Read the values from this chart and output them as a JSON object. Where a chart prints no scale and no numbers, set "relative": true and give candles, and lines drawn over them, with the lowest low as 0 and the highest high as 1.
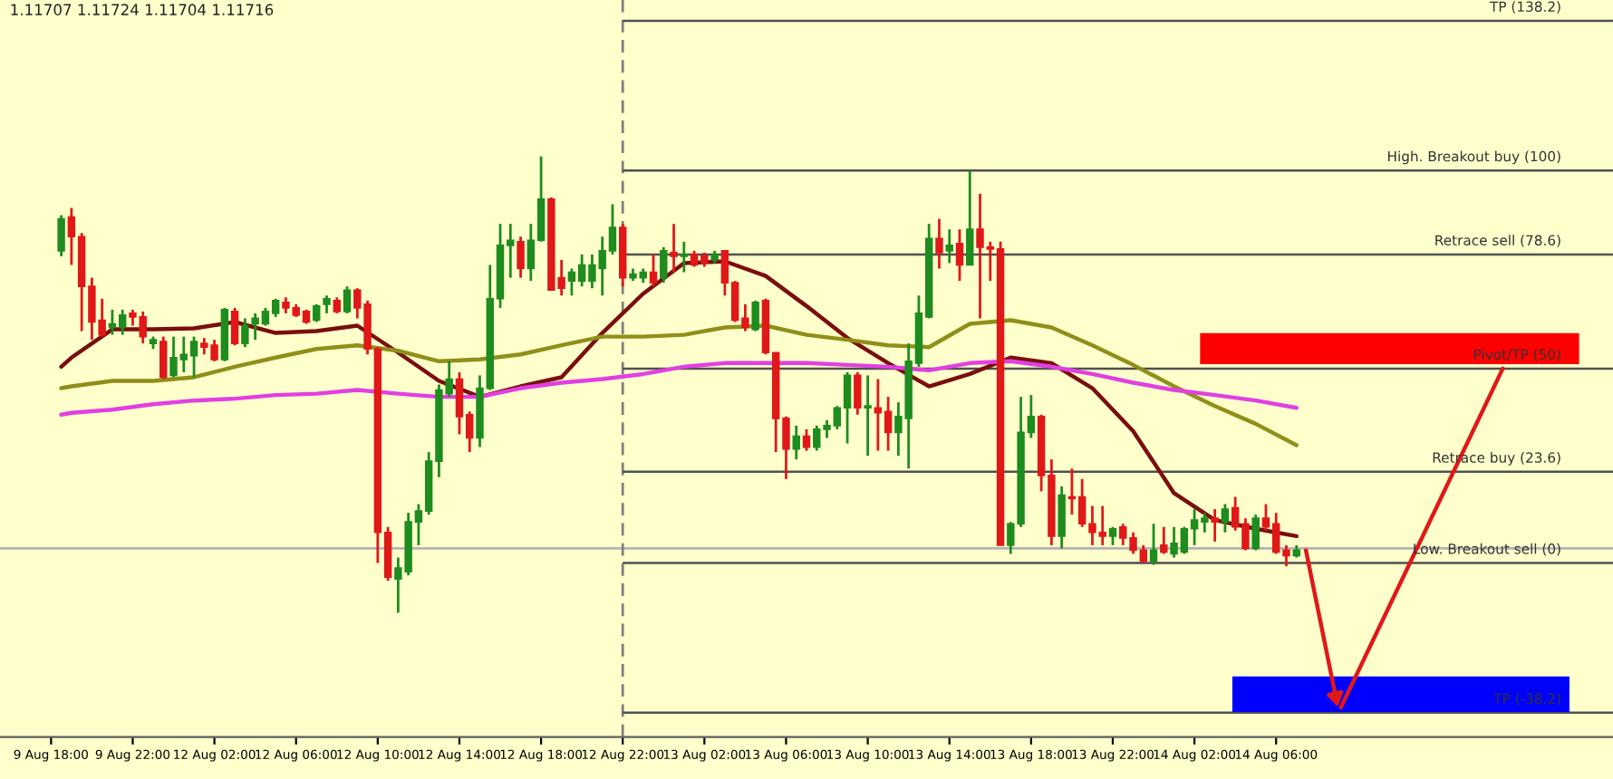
{
  "chart_data": {
    "type": "candlestick",
    "relative": true,
    "annotations": [
      "1.11707 1.11724 1.11704 1.11716"
    ],
    "tick_labels": "x",
    "grid": false,
    "categories": [
      "9 Aug 18:00",
      null,
      null,
      null,
      null,
      null,
      null,
      null,
      "9 Aug 22:00",
      null,
      null,
      null,
      null,
      null,
      null,
      null,
      "12 Aug 02:00",
      null,
      null,
      null,
      null,
      null,
      null,
      null,
      "12 Aug 06:00",
      null,
      null,
      null,
      null,
      null,
      null,
      null,
      "12 Aug 10:00",
      null,
      null,
      null,
      null,
      null,
      null,
      null,
      "12 Aug 14:00",
      null,
      null,
      null,
      null,
      null,
      null,
      null,
      "12 Aug 18:00",
      null,
      null,
      null,
      null,
      null,
      null,
      null,
      "12 Aug 22:00",
      null,
      null,
      null,
      null,
      null,
      null,
      null,
      "13 Aug 02:00",
      null,
      null,
      null,
      null,
      null,
      null,
      null,
      "13 Aug 06:00",
      null,
      null,
      null,
      null,
      null,
      null,
      null,
      "13 Aug 10:00",
      null,
      null,
      null,
      null,
      null,
      null,
      null,
      "13 Aug 14:00",
      null,
      null,
      null,
      null,
      null,
      null,
      null,
      "13 Aug 18:00",
      null,
      null,
      null,
      null,
      null,
      null,
      null,
      "13 Aug 22:00",
      null,
      null,
      null,
      null,
      null,
      null,
      null,
      "14 Aug 02:00",
      null,
      null,
      null,
      null,
      null,
      null,
      null,
      "14 Aug 06:00",
      null,
      null
    ],
    "ohlc": [
      null,
      [
        0.793,
        0.871,
        0.781,
        0.863
      ],
      [
        0.867,
        0.887,
        0.762,
        0.824
      ],
      [
        0.824,
        0.832,
        0.617,
        0.715
      ],
      [
        0.715,
        0.734,
        0.598,
        0.637
      ],
      [
        0.641,
        0.688,
        0.605,
        0.609
      ],
      [
        0.625,
        0.664,
        0.609,
        0.633
      ],
      [
        0.625,
        0.664,
        0.609,
        0.652
      ],
      [
        0.656,
        0.664,
        0.629,
        0.648
      ],
      [
        0.648,
        0.66,
        0.59,
        0.605
      ],
      [
        0.59,
        0.605,
        0.578,
        0.598
      ],
      [
        0.594,
        0.605,
        0.512,
        0.516
      ],
      [
        0.52,
        0.605,
        0.516,
        0.559
      ],
      [
        0.555,
        0.605,
        0.527,
        0.566
      ],
      [
        0.563,
        0.605,
        0.516,
        0.594
      ],
      [
        0.59,
        0.602,
        0.566,
        0.582
      ],
      [
        0.586,
        0.598,
        0.551,
        0.555
      ],
      [
        0.555,
        0.668,
        0.551,
        0.664
      ],
      [
        0.66,
        0.668,
        0.586,
        0.59
      ],
      [
        0.59,
        0.645,
        0.582,
        0.629
      ],
      [
        0.633,
        0.656,
        0.598,
        0.645
      ],
      [
        0.633,
        0.668,
        0.629,
        0.66
      ],
      [
        0.656,
        0.688,
        0.648,
        0.684
      ],
      [
        0.68,
        0.691,
        0.656,
        0.668
      ],
      [
        0.668,
        0.676,
        0.648,
        0.652
      ],
      [
        0.66,
        0.664,
        0.633,
        0.637
      ],
      [
        0.641,
        0.676,
        0.637,
        0.672
      ],
      [
        0.676,
        0.695,
        0.656,
        0.688
      ],
      [
        0.684,
        0.691,
        0.656,
        0.66
      ],
      [
        0.66,
        0.715,
        0.656,
        0.707
      ],
      [
        0.707,
        0.711,
        0.645,
        0.668
      ],
      [
        0.676,
        0.684,
        0.566,
        0.578
      ],
      [
        0.578,
        0.582,
        0.109,
        0.176
      ],
      [
        0.176,
        0.188,
        0.07,
        0.078
      ],
      [
        0.074,
        0.121,
        0.0,
        0.098
      ],
      [
        0.09,
        0.219,
        0.082,
        0.199
      ],
      [
        0.199,
        0.238,
        0.148,
        0.223
      ],
      [
        0.223,
        0.352,
        0.215,
        0.332
      ],
      [
        0.332,
        0.5,
        0.297,
        0.488
      ],
      [
        0.48,
        0.551,
        0.473,
        0.512
      ],
      [
        0.512,
        0.527,
        0.391,
        0.43
      ],
      [
        0.434,
        0.441,
        0.352,
        0.383
      ],
      [
        0.383,
        0.52,
        0.363,
        0.492
      ],
      [
        0.492,
        0.762,
        0.488,
        0.688
      ],
      [
        0.688,
        0.852,
        0.668,
        0.805
      ],
      [
        0.805,
        0.852,
        0.734,
        0.816
      ],
      [
        0.813,
        0.824,
        0.734,
        0.754
      ],
      [
        0.754,
        0.852,
        0.727,
        0.816
      ],
      [
        0.816,
        1.0,
        0.813,
        0.906
      ],
      [
        0.906,
        0.91,
        0.707,
        0.707
      ],
      [
        0.734,
        0.773,
        0.695,
        0.711
      ],
      [
        0.727,
        0.754,
        0.695,
        0.746
      ],
      [
        0.727,
        0.785,
        0.715,
        0.762
      ],
      [
        0.727,
        0.785,
        0.711,
        0.762
      ],
      [
        0.754,
        0.824,
        0.695,
        0.793
      ],
      [
        0.793,
        0.895,
        0.785,
        0.844
      ],
      [
        0.844,
        0.852,
        0.715,
        0.734
      ],
      [
        0.734,
        0.754,
        0.727,
        0.742
      ],
      [
        0.734,
        0.754,
        0.723,
        0.746
      ],
      [
        0.746,
        0.785,
        0.715,
        0.723
      ],
      [
        0.734,
        0.801,
        0.723,
        0.793
      ],
      [
        0.789,
        0.852,
        0.746,
        0.781
      ],
      [
        0.781,
        0.813,
        0.746,
        0.785
      ],
      [
        0.785,
        0.793,
        0.758,
        0.762
      ],
      [
        0.781,
        0.789,
        0.758,
        0.766
      ],
      [
        0.773,
        0.793,
        0.766,
        0.785
      ],
      [
        0.793,
        0.793,
        0.695,
        0.723
      ],
      [
        0.723,
        0.727,
        0.637,
        0.641
      ],
      [
        0.645,
        0.676,
        0.617,
        0.625
      ],
      [
        0.621,
        0.684,
        0.617,
        0.68
      ],
      [
        0.684,
        0.688,
        0.566,
        0.57
      ],
      [
        0.57,
        0.57,
        0.352,
        0.426
      ],
      [
        0.426,
        0.43,
        0.293,
        0.359
      ],
      [
        0.359,
        0.41,
        0.336,
        0.387
      ],
      [
        0.387,
        0.402,
        0.355,
        0.363
      ],
      [
        0.363,
        0.41,
        0.355,
        0.402
      ],
      [
        0.402,
        0.422,
        0.383,
        0.41
      ],
      [
        0.41,
        0.453,
        0.402,
        0.449
      ],
      [
        0.449,
        0.527,
        0.371,
        0.52
      ],
      [
        0.52,
        0.527,
        0.434,
        0.449
      ],
      [
        0.449,
        0.52,
        0.344,
        0.453
      ],
      [
        0.449,
        0.512,
        0.355,
        0.438
      ],
      [
        0.441,
        0.473,
        0.355,
        0.395
      ],
      [
        0.395,
        0.461,
        0.344,
        0.43
      ],
      [
        0.426,
        0.59,
        0.316,
        0.551
      ],
      [
        0.547,
        0.695,
        0.539,
        0.656
      ],
      [
        0.648,
        0.852,
        0.645,
        0.82
      ],
      [
        0.82,
        0.863,
        0.754,
        0.789
      ],
      [
        0.793,
        0.84,
        0.766,
        0.805
      ],
      [
        0.809,
        0.84,
        0.727,
        0.762
      ],
      [
        0.762,
        0.969,
        0.762,
        0.84
      ],
      [
        0.84,
        0.918,
        0.645,
        0.801
      ],
      [
        0.801,
        0.813,
        0.727,
        0.797
      ],
      [
        0.797,
        0.813,
        0.148,
        0.148
      ],
      [
        0.148,
        0.199,
        0.129,
        0.195
      ],
      [
        0.195,
        0.473,
        0.188,
        0.395
      ],
      [
        0.395,
        0.477,
        0.383,
        0.43
      ],
      [
        0.43,
        0.434,
        0.266,
        0.301
      ],
      [
        0.301,
        0.336,
        0.148,
        0.168
      ],
      [
        0.168,
        0.277,
        0.141,
        0.258
      ],
      [
        0.254,
        0.316,
        0.215,
        0.25
      ],
      [
        0.254,
        0.293,
        0.188,
        0.195
      ],
      [
        0.195,
        0.234,
        0.148,
        0.176
      ],
      [
        0.176,
        0.234,
        0.148,
        0.168
      ],
      [
        0.168,
        0.188,
        0.148,
        0.184
      ],
      [
        0.188,
        0.195,
        0.148,
        0.164
      ],
      [
        0.164,
        0.176,
        0.129,
        0.137
      ],
      [
        0.137,
        0.148,
        0.109,
        0.113
      ],
      [
        0.113,
        0.195,
        0.105,
        0.137
      ],
      [
        0.148,
        0.188,
        0.129,
        0.133
      ],
      [
        0.129,
        0.188,
        0.121,
        0.152
      ],
      [
        0.133,
        0.188,
        0.129,
        0.184
      ],
      [
        0.184,
        0.227,
        0.148,
        0.203
      ],
      [
        0.199,
        0.219,
        0.176,
        0.207
      ],
      [
        0.207,
        0.227,
        0.156,
        0.199
      ],
      [
        0.199,
        0.238,
        0.176,
        0.227
      ],
      [
        0.23,
        0.254,
        0.18,
        0.188
      ],
      [
        0.195,
        0.207,
        0.137,
        0.141
      ],
      [
        0.141,
        0.215,
        0.137,
        0.207
      ],
      [
        0.207,
        0.238,
        0.18,
        0.188
      ],
      [
        0.195,
        0.219,
        0.129,
        0.133
      ],
      [
        0.137,
        0.148,
        0.102,
        0.125
      ],
      [
        0.125,
        0.148,
        0.121,
        0.137
      ]
    ],
    "colors": [
      null,
      "#1e8c1e",
      "#e01818",
      "#e01818",
      "#e01818",
      "#e01818",
      "#1e8c1e",
      "#1e8c1e",
      "#e01818",
      "#e01818",
      "#1e8c1e",
      "#e01818",
      "#1e8c1e",
      "#1e8c1e",
      "#1e8c1e",
      "#e01818",
      "#e01818",
      "#1e8c1e",
      "#e01818",
      "#1e8c1e",
      "#1e8c1e",
      "#1e8c1e",
      "#1e8c1e",
      "#e01818",
      "#e01818",
      "#e01818",
      "#1e8c1e",
      "#1e8c1e",
      "#e01818",
      "#1e8c1e",
      "#e01818",
      "#e01818",
      "#e01818",
      "#e01818",
      "#1e8c1e",
      "#1e8c1e",
      "#1e8c1e",
      "#1e8c1e",
      "#1e8c1e",
      "#1e8c1e",
      "#e01818",
      "#e01818",
      "#1e8c1e",
      "#1e8c1e",
      "#1e8c1e",
      "#1e8c1e",
      "#e01818",
      "#1e8c1e",
      "#1e8c1e",
      "#e01818",
      "#e01818",
      "#1e8c1e",
      "#1e8c1e",
      "#1e8c1e",
      "#1e8c1e",
      "#1e8c1e",
      "#e01818",
      "#1e8c1e",
      "#1e8c1e",
      "#e01818",
      "#1e8c1e",
      "#e01818",
      "#1e8c1e",
      "#e01818",
      "#e01818",
      "#1e8c1e",
      "#e01818",
      "#e01818",
      "#e01818",
      "#1e8c1e",
      "#e01818",
      "#e01818",
      "#e01818",
      "#1e8c1e",
      "#e01818",
      "#1e8c1e",
      "#1e8c1e",
      "#1e8c1e",
      "#1e8c1e",
      "#e01818",
      "#1e8c1e",
      "#e01818",
      "#e01818",
      "#1e8c1e",
      "#1e8c1e",
      "#1e8c1e",
      "#1e8c1e",
      "#e01818",
      "#1e8c1e",
      "#e01818",
      "#1e8c1e",
      "#e01818",
      "#e01818",
      "#e01818",
      "#1e8c1e",
      "#1e8c1e",
      "#1e8c1e",
      "#e01818",
      "#e01818",
      "#1e8c1e",
      "#e01818",
      "#e01818",
      "#e01818",
      "#e01818",
      "#1e8c1e",
      "#e01818",
      "#e01818",
      "#e01818",
      "#1e8c1e",
      "#e01818",
      "#1e8c1e",
      "#1e8c1e",
      "#1e8c1e",
      "#1e8c1e",
      "#e01818",
      "#1e8c1e",
      "#e01818",
      "#e01818",
      "#1e8c1e",
      "#e01818",
      "#e01818",
      "#e01818",
      "#1e8c1e"
    ],
    "series": [
      {
        "type": "line",
        "color": "#7a0e0e",
        "values": [
          null,
          0.539,
          0.559,
          null,
          null,
          null,
          0.621,
          null,
          null,
          null,
          0.621,
          null,
          null,
          null,
          0.623,
          null,
          null,
          null,
          0.637,
          null,
          null,
          null,
          0.613,
          null,
          null,
          null,
          0.617,
          null,
          null,
          null,
          0.629,
          null,
          null,
          null,
          0.57,
          null,
          null,
          null,
          0.508,
          null,
          null,
          null,
          0.473,
          null,
          null,
          null,
          0.496,
          null,
          null,
          null,
          0.516,
          null,
          null,
          null,
          0.613,
          null,
          null,
          null,
          0.699,
          null,
          null,
          null,
          0.766,
          null,
          null,
          null,
          0.77,
          null,
          null,
          null,
          0.738,
          null,
          null,
          null,
          0.672,
          null,
          null,
          null,
          0.602,
          null,
          null,
          null,
          0.547,
          null,
          null,
          null,
          0.496,
          null,
          null,
          null,
          0.523,
          null,
          null,
          null,
          0.559,
          null,
          null,
          null,
          0.547,
          null,
          null,
          null,
          0.492,
          null,
          null,
          null,
          0.398,
          null,
          null,
          null,
          0.262,
          null,
          null,
          null,
          0.203,
          null,
          null,
          null,
          0.184,
          null,
          null,
          null,
          0.168
        ]
      },
      {
        "type": "line",
        "color": "#8f8f1a",
        "values": [
          null,
          0.492,
          0.496,
          null,
          null,
          null,
          0.508,
          null,
          null,
          null,
          0.508,
          null,
          null,
          null,
          0.516,
          null,
          null,
          null,
          0.539,
          null,
          null,
          null,
          0.559,
          null,
          null,
          null,
          0.578,
          null,
          null,
          null,
          0.586,
          null,
          null,
          null,
          0.574,
          null,
          null,
          null,
          0.551,
          null,
          null,
          null,
          0.555,
          null,
          null,
          null,
          0.566,
          null,
          null,
          null,
          0.586,
          null,
          null,
          null,
          0.605,
          null,
          null,
          null,
          0.605,
          null,
          null,
          null,
          0.609,
          null,
          null,
          null,
          0.625,
          null,
          null,
          null,
          0.629,
          null,
          null,
          null,
          0.609,
          null,
          null,
          null,
          0.598,
          null,
          null,
          null,
          0.586,
          null,
          null,
          null,
          0.582,
          null,
          null,
          null,
          0.633,
          null,
          null,
          null,
          0.641,
          null,
          null,
          null,
          0.625,
          null,
          null,
          null,
          0.586,
          null,
          null,
          null,
          0.543,
          null,
          null,
          null,
          0.496,
          null,
          null,
          null,
          0.453,
          null,
          null,
          null,
          0.414,
          null,
          null,
          null,
          0.367
        ]
      },
      {
        "type": "line",
        "color": "#e23fe2",
        "values": [
          null,
          0.434,
          0.438,
          null,
          null,
          null,
          0.445,
          null,
          null,
          null,
          0.457,
          null,
          null,
          null,
          0.465,
          null,
          null,
          null,
          0.469,
          null,
          null,
          null,
          0.477,
          null,
          null,
          null,
          0.48,
          null,
          null,
          null,
          0.488,
          null,
          null,
          null,
          0.48,
          null,
          null,
          null,
          0.473,
          null,
          null,
          null,
          0.473,
          null,
          null,
          null,
          0.492,
          null,
          null,
          null,
          0.504,
          null,
          null,
          null,
          0.512,
          null,
          null,
          null,
          0.523,
          null,
          null,
          null,
          0.539,
          null,
          null,
          null,
          0.547,
          null,
          null,
          null,
          0.547,
          null,
          null,
          null,
          0.547,
          null,
          null,
          null,
          0.543,
          null,
          null,
          null,
          0.539,
          null,
          null,
          null,
          0.531,
          null,
          null,
          null,
          0.547,
          null,
          null,
          null,
          0.551,
          null,
          null,
          null,
          0.539,
          null,
          null,
          null,
          0.523,
          null,
          null,
          null,
          0.504,
          null,
          null,
          null,
          0.488,
          null,
          null,
          null,
          0.477,
          null,
          null,
          null,
          0.465,
          null,
          null,
          null,
          0.449
        ]
      }
    ],
    "ref_lines": [
      {
        "axis": "x",
        "value": "12 Aug 22:00",
        "color": "#808080",
        "line_style": "dashed"
      },
      {
        "axis": "y",
        "value": 0.141,
        "color": "#b4b4b4"
      },
      {
        "axis": "y",
        "value": 1.297,
        "label": "TP (138.2)",
        "color": "#505050"
      },
      {
        "axis": "y",
        "value": 0.969,
        "label": "High. Breakout buy (100)",
        "color": "#505050"
      },
      {
        "axis": "y",
        "value": 0.785,
        "label": "Retrace sell (78.6)",
        "color": "#505050"
      },
      {
        "axis": "y",
        "value": 0.535,
        "label": "Pivot/TP (50)",
        "color": "#505050"
      },
      {
        "axis": "y",
        "value": 0.309,
        "label": "Retrace buy (23.6)",
        "color": "#505050"
      },
      {
        "axis": "y",
        "value": 0.109,
        "label": "Low. Breakout sell (0)",
        "color": "#505050"
      },
      {
        "axis": "y",
        "value": -0.219,
        "label": "TP (-38.2)",
        "color": "#505050"
      }
    ]
  }
}
